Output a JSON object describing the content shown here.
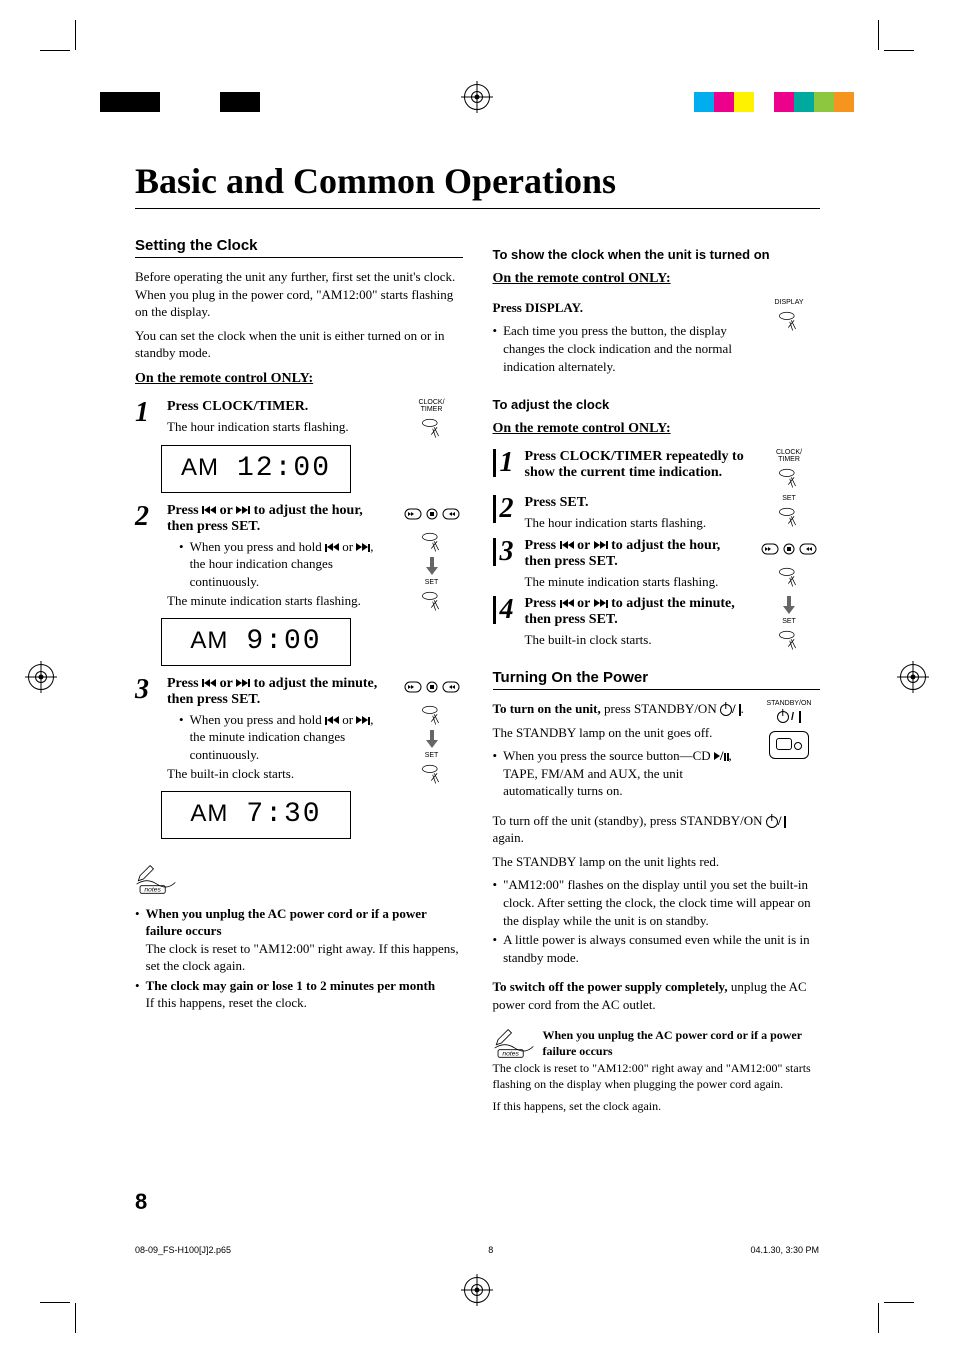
{
  "page": {
    "title": "Basic and Common Operations",
    "page_number": "8",
    "footer_left": "08-09_FS-H100[J]2.p65",
    "footer_center": "8",
    "footer_right": "04.1.30, 3:30 PM"
  },
  "reg_colors_left": [
    "#000000",
    "#000000",
    "#000000",
    "#ffffff",
    "#ffffff",
    "#ffffff",
    "#000000",
    "#000000"
  ],
  "reg_colors_right": [
    "#00aeef",
    "#ec008c",
    "#fff200",
    "#ffffff",
    "#ec008c",
    "#00a99d",
    "#8dc63f",
    "#f7941d"
  ],
  "left_col": {
    "section_title": "Setting the Clock",
    "intro_p1": "Before operating the unit any further, first set the unit's clock. When you plug in the power cord, \"AM12:00\" starts flashing on the display.",
    "intro_p2": "You can set the clock when the unit is either turned on or in standby mode.",
    "remote_only": "On the remote control ONLY:",
    "step1": {
      "num": "1",
      "title": "Press CLOCK/TIMER.",
      "text": "The hour indication starts flashing.",
      "icon_label": "CLOCK/\nTIMER",
      "lcd_am": "AM",
      "lcd_time": "12:00"
    },
    "step2": {
      "num": "2",
      "title_a": "Press ",
      "title_b": " or ",
      "title_c": " to adjust the hour, then press SET.",
      "bullet_a": "When you press and hold ",
      "bullet_b": " or ",
      "bullet_c": ", the hour indication changes continuously.",
      "text2": "The minute indication starts flashing.",
      "set_label": "SET",
      "lcd_am": "AM",
      "lcd_time": "9:00"
    },
    "step3": {
      "num": "3",
      "title_a": "Press ",
      "title_b": " or ",
      "title_c": " to adjust the minute, then press SET.",
      "bullet_a": "When you press and hold ",
      "bullet_b": " or ",
      "bullet_c": ", the minute indication changes continuously.",
      "text2": "The built-in clock starts.",
      "set_label": "SET",
      "lcd_am": "AM",
      "lcd_time": "7:30"
    },
    "notes": {
      "b1_title": "When you unplug the AC power cord or if a power failure occurs",
      "b1_text": "The clock is reset to \"AM12:00\" right away. If this happens, set the clock again.",
      "b2_title": "The clock may gain or lose 1 to 2 minutes per month",
      "b2_text": "If this happens, reset the clock."
    }
  },
  "right_col": {
    "show_clock_head": "To show the clock when the unit is turned on",
    "remote_only": "On the remote control ONLY:",
    "press_display": "Press DISPLAY.",
    "display_bullet": "Each time you press the button, the display changes the clock indication and the normal indication alternately.",
    "display_label": "DISPLAY",
    "adjust_head": "To adjust the clock",
    "step1": {
      "num": "1",
      "title": "Press CLOCK/TIMER repeatedly to show the current time indication.",
      "icon_label": "CLOCK/\nTIMER"
    },
    "step2": {
      "num": "2",
      "title": "Press SET.",
      "text": "The hour indication starts flashing.",
      "icon_label": "SET"
    },
    "step3": {
      "num": "3",
      "title_a": "Press ",
      "title_b": " or ",
      "title_c": " to adjust the hour, then press SET.",
      "text": "The minute indication starts flashing."
    },
    "step4": {
      "num": "4",
      "title_a": "Press ",
      "title_b": " or ",
      "title_c": " to adjust the minute, then press SET.",
      "text": "The built-in clock starts.",
      "icon_label": "SET"
    },
    "power_section_title": "Turning On the Power",
    "turn_on_a": "To turn on the unit, ",
    "turn_on_b": "press STANDBY/ON ",
    "turn_on_c": ".",
    "standby_off": "The STANDBY lamp on the unit goes off.",
    "source_bullet_a": "When you press the source button—CD ",
    "source_bullet_b": ", TAPE, FM/AM and AUX, the unit automatically turns on.",
    "standby_label": "STANDBY/ON",
    "turn_off_a": "To turn off the unit (standby), press STANDBY/ON ",
    "turn_off_b": " again.",
    "standby_red": "The STANDBY lamp on the unit lights red.",
    "off_b1": "\"AM12:00\" flashes on the display until you set the built-in clock. After setting the clock, the clock time will appear on the display while the unit is on standby.",
    "off_b2": "A little power is always consumed even while the unit is in standby mode.",
    "switch_off_a": "To switch off the power supply completely, ",
    "switch_off_b": "unplug the AC power cord from the AC outlet.",
    "note_title": "When you unplug the AC power cord or if a power failure occurs",
    "note_text1": "The clock is reset to \"AM12:00\" right away and \"AM12:00\" starts flashing on the display when plugging the power cord again.",
    "note_text2": "If this happens, set the clock again."
  }
}
